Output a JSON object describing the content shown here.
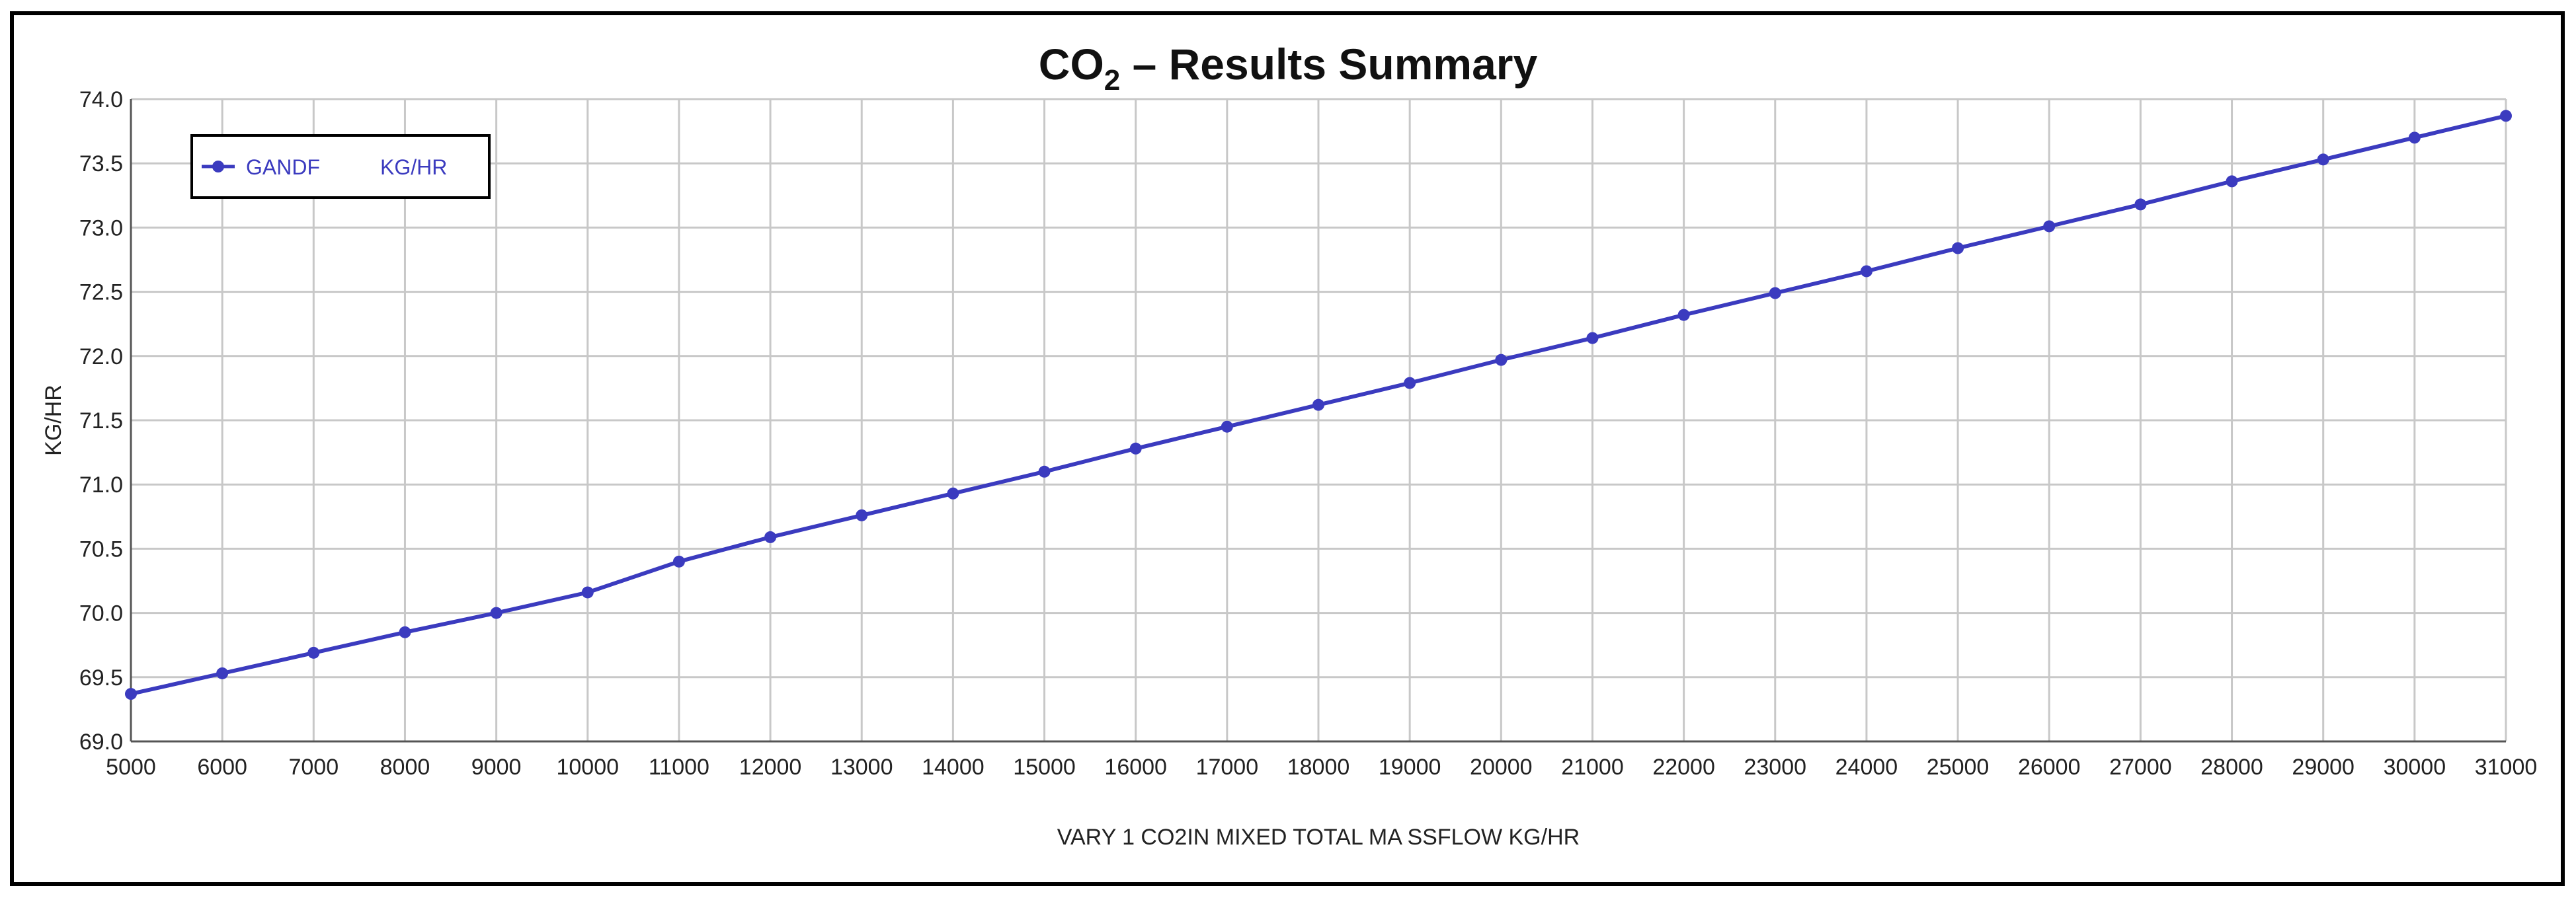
{
  "colors": {
    "series": "#3b3bbf",
    "grid": "#c8c8c8",
    "frame": "#000000",
    "axis": "#555555",
    "background": "#ffffff"
  },
  "chart_data": {
    "type": "line",
    "title_main": "CO",
    "title_sub": "2",
    "title_rest": " – Results Summary",
    "xlabel": "VARY 1 CO2IN MIXED TOTAL MA SSFLOW KG/HR",
    "ylabel": "KG/HR",
    "xlim": [
      5000,
      31000
    ],
    "ylim": [
      69.0,
      74.0
    ],
    "x_ticks": [
      "5000",
      "6000",
      "7000",
      "8000",
      "9000",
      "10000",
      "11000",
      "12000",
      "13000",
      "14000",
      "15000",
      "16000",
      "17000",
      "18000",
      "19000",
      "20000",
      "21000",
      "22000",
      "23000",
      "24000",
      "25000",
      "26000",
      "27000",
      "28000",
      "29000",
      "30000",
      "31000"
    ],
    "y_ticks": [
      "69.0",
      "69.5",
      "70.0",
      "70.5",
      "71.0",
      "71.5",
      "72.0",
      "72.5",
      "73.0",
      "73.5",
      "74.0"
    ],
    "legend_position": "top-left",
    "grid": true,
    "series": [
      {
        "name": "GANDF",
        "unit": "KG/HR",
        "marker": "circle",
        "x": [
          5000,
          6000,
          7000,
          8000,
          9000,
          10000,
          11000,
          12000,
          13000,
          14000,
          15000,
          16000,
          17000,
          18000,
          19000,
          20000,
          21000,
          22000,
          23000,
          24000,
          25000,
          26000,
          27000,
          28000,
          29000,
          30000,
          31000
        ],
        "values": [
          69.37,
          69.53,
          69.69,
          69.85,
          70.0,
          70.16,
          70.4,
          70.59,
          70.76,
          70.93,
          71.1,
          71.28,
          71.45,
          71.62,
          71.79,
          71.97,
          72.14,
          72.32,
          72.49,
          72.66,
          72.84,
          73.01,
          73.18,
          73.36,
          73.53,
          73.7,
          73.87
        ]
      }
    ]
  }
}
